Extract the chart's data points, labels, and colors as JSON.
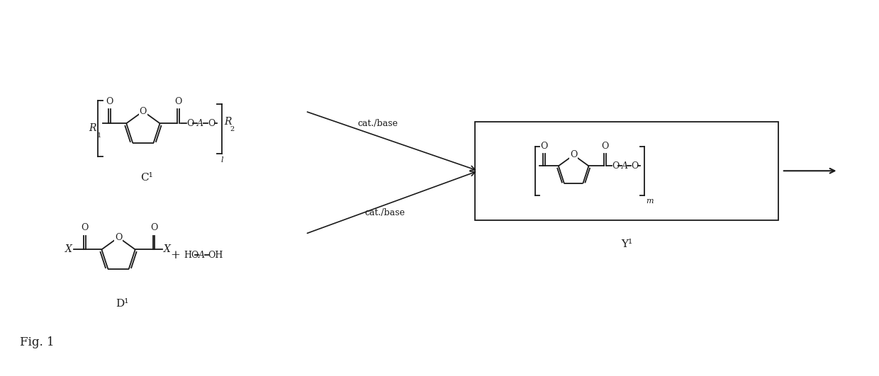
{
  "bg_color": "#ffffff",
  "fig_width": 12.4,
  "fig_height": 5.31,
  "fig_label": "Fig. 1",
  "compound_C1_label": "C¹",
  "compound_D1_label": "D¹",
  "compound_Y1_label": "Y¹",
  "cat_base_1": "cat./base",
  "cat_base_2": "cat./base",
  "line_color": "#1a1a1a"
}
